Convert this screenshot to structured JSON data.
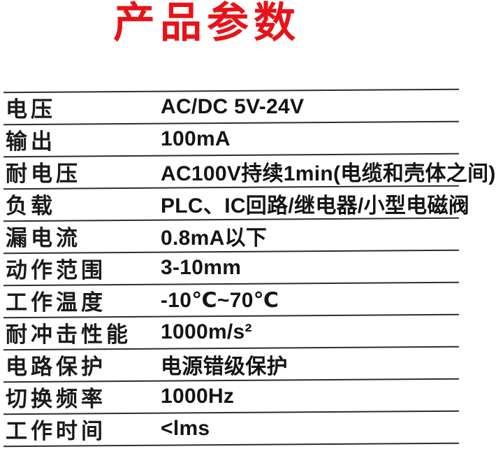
{
  "header": {
    "title": "产品参数",
    "accent_color": "#e81318"
  },
  "table": {
    "text_color": "#1a1a1a",
    "line_color": "#2e2e2e",
    "rows": [
      {
        "label": "电压",
        "value": "AC/DC 5V-24V"
      },
      {
        "label": "输出",
        "value": "100mA"
      },
      {
        "label": "耐电压",
        "value": "AC100V持续1min(电缆和壳体之间)"
      },
      {
        "label": "负载",
        "value": "PLC、IC回路/继电器/小型电磁阀"
      },
      {
        "label": "漏电流",
        "value": "0.8mA以下"
      },
      {
        "label": "动作范围",
        "value": "3-10mm"
      },
      {
        "label": "工作温度",
        "value": "-10℃~70℃"
      },
      {
        "label": "耐冲击性能",
        "value": "1000m/s²"
      },
      {
        "label": "电路保护",
        "value": "电源错级保护"
      },
      {
        "label": "切换频率",
        "value": "1000Hz"
      },
      {
        "label": "工作时间",
        "value": "<lms"
      }
    ]
  }
}
